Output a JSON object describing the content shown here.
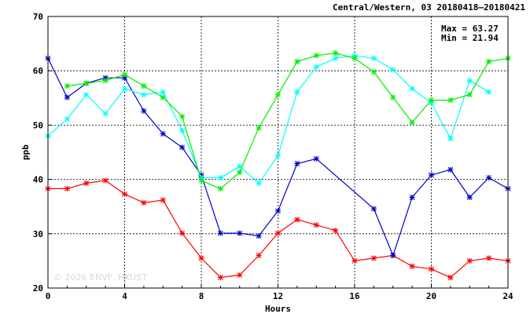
{
  "chart_data": {
    "type": "line",
    "title": "Central/Western, 03 20180418–20180421",
    "xlabel": "Hours",
    "ylabel": "ppb",
    "xlim": [
      0,
      24
    ],
    "ylim": [
      20,
      70
    ],
    "xticks": [
      0,
      4,
      8,
      12,
      16,
      20,
      24
    ],
    "yticks": [
      20,
      30,
      40,
      50,
      60,
      70
    ],
    "grid": true,
    "annotations": {
      "max": "Max = 63.27",
      "min": "Min = 21.94"
    },
    "watermark": "© 2026 ENVF, HKUST",
    "series": [
      {
        "color": "#ff0000",
        "x": [
          0,
          1,
          2,
          3,
          4,
          5,
          6,
          7,
          8,
          9,
          10,
          11,
          12,
          13,
          14,
          15,
          16,
          17,
          18,
          19,
          20,
          21,
          22,
          23,
          24
        ],
        "values": [
          38.3,
          38.3,
          39.3,
          39.8,
          37.3,
          35.7,
          36.2,
          30.1,
          25.5,
          21.94,
          22.4,
          26.0,
          30.1,
          32.6,
          31.6,
          30.6,
          25.0,
          25.5,
          26.0,
          24.0,
          23.5,
          21.94,
          25.0,
          25.5,
          25.0
        ]
      },
      {
        "color": "#0000cc",
        "x": [
          0,
          1,
          2,
          3,
          4,
          5,
          6,
          7,
          8,
          9,
          10,
          11,
          12,
          13,
          14,
          17,
          18,
          19,
          20,
          21,
          22,
          23,
          24
        ],
        "values": [
          62.3,
          55.1,
          57.7,
          58.7,
          58.7,
          52.6,
          48.4,
          45.9,
          40.8,
          30.1,
          30.1,
          29.6,
          34.2,
          42.9,
          43.8,
          34.6,
          26.0,
          36.7,
          40.8,
          41.8,
          36.7,
          40.3,
          38.3
        ]
      },
      {
        "color": "#00ffff",
        "x": [
          0,
          1,
          2,
          3,
          4,
          5,
          6,
          7,
          8,
          9,
          10,
          11,
          12,
          13,
          14,
          15,
          16,
          17,
          18,
          19,
          20,
          21,
          22,
          23
        ],
        "values": [
          48.0,
          51.1,
          55.6,
          52.1,
          56.7,
          55.6,
          56.1,
          49.0,
          40.3,
          40.3,
          42.4,
          39.3,
          44.4,
          56.1,
          60.7,
          62.3,
          62.8,
          62.3,
          60.2,
          56.7,
          54.1,
          47.5,
          58.2,
          56.1
        ]
      },
      {
        "color": "#00ee00",
        "x": [
          1,
          2,
          3,
          4,
          5,
          6,
          7,
          8,
          9,
          10,
          11,
          12,
          13,
          14,
          15,
          16,
          17,
          18,
          19,
          20,
          21,
          22,
          23,
          24
        ],
        "values": [
          57.2,
          57.7,
          58.2,
          59.3,
          57.2,
          55.1,
          51.6,
          39.8,
          38.3,
          41.3,
          49.5,
          55.6,
          61.7,
          62.8,
          63.27,
          62.3,
          59.8,
          55.1,
          50.5,
          54.6,
          54.6,
          55.6,
          61.7,
          62.3
        ]
      }
    ]
  }
}
